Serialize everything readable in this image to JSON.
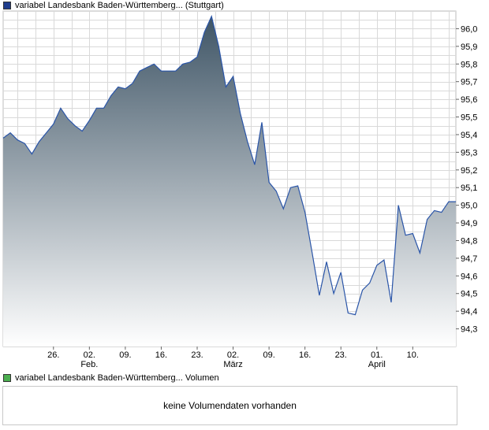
{
  "price_legend": {
    "text": "variabel Landesbank Baden-Württemberg... (Stuttgart)",
    "color": "#1f3d8c"
  },
  "volume_legend": {
    "text": "variabel Landesbank Baden-Württemberg... Volumen",
    "color": "#4caf50"
  },
  "volume_panel": {
    "message": "keine Volumendaten vorhanden"
  },
  "colors": {
    "line": "#2a55a8",
    "fill_top": "#3f5566",
    "fill_bottom": "#ffffff",
    "grid": "#d9d9d9",
    "axis": "#bdbdbd"
  },
  "chart_data": {
    "type": "area",
    "title": "",
    "xlabel": "",
    "ylabel": "",
    "ylim": [
      94.2,
      96.1
    ],
    "yticks": [
      "96,0",
      "95,9",
      "95,8",
      "95,7",
      "95,6",
      "95,5",
      "95,4",
      "95,3",
      "95,2",
      "95,1",
      "95,0",
      "94,9",
      "94,8",
      "94,7",
      "94,6",
      "94,5",
      "94,4",
      "94,3"
    ],
    "ytick_values": [
      96.0,
      95.9,
      95.8,
      95.7,
      95.6,
      95.5,
      95.4,
      95.3,
      95.2,
      95.1,
      95.0,
      94.9,
      94.8,
      94.7,
      94.6,
      94.5,
      94.4,
      94.3
    ],
    "grid": true,
    "x_ticks": [
      {
        "label": "26.",
        "month": "",
        "pos": 10
      },
      {
        "label": "02.",
        "month": "Feb.",
        "pos": 15
      },
      {
        "label": "09.",
        "month": "",
        "pos": 20
      },
      {
        "label": "16.",
        "month": "",
        "pos": 25
      },
      {
        "label": "23.",
        "month": "",
        "pos": 30
      },
      {
        "label": "02.",
        "month": "März",
        "pos": 35
      },
      {
        "label": "09.",
        "month": "",
        "pos": 40
      },
      {
        "label": "16.",
        "month": "",
        "pos": 45
      },
      {
        "label": "23.",
        "month": "",
        "pos": 50
      },
      {
        "label": "01.",
        "month": "April",
        "pos": 55
      },
      {
        "label": "10.",
        "month": "",
        "pos": 60
      }
    ],
    "x_range": [
      3,
      66
    ],
    "series": [
      {
        "x": [
          3,
          4,
          5,
          6,
          7,
          8,
          9,
          10,
          11,
          12,
          13,
          14,
          15,
          16,
          17,
          18,
          19,
          20,
          21,
          22,
          23,
          24,
          25,
          26,
          27,
          28,
          29,
          30,
          31,
          32,
          33,
          34,
          35,
          36,
          37,
          38,
          39,
          40,
          41,
          42,
          43,
          44,
          45,
          46,
          47,
          48,
          49,
          50,
          51,
          52,
          53,
          54,
          55,
          56,
          57,
          58,
          59,
          60,
          61,
          62,
          63,
          64,
          65,
          66
        ],
        "values": [
          95.38,
          95.41,
          95.37,
          95.35,
          95.29,
          95.36,
          95.41,
          95.46,
          95.55,
          95.49,
          95.45,
          95.42,
          95.48,
          95.55,
          95.55,
          95.62,
          95.67,
          95.66,
          95.69,
          95.76,
          95.78,
          95.8,
          95.76,
          95.76,
          95.76,
          95.8,
          95.81,
          95.84,
          95.98,
          96.07,
          95.9,
          95.67,
          95.73,
          95.52,
          95.36,
          95.23,
          95.47,
          95.13,
          95.08,
          94.98,
          95.1,
          95.11,
          94.96,
          94.73,
          94.49,
          94.68,
          94.5,
          94.62,
          94.39,
          94.38,
          94.52,
          94.56,
          94.66,
          94.69,
          94.45,
          95.0,
          94.83,
          94.84,
          94.73,
          94.92,
          94.97,
          94.96,
          95.02,
          95.02
        ]
      }
    ]
  }
}
